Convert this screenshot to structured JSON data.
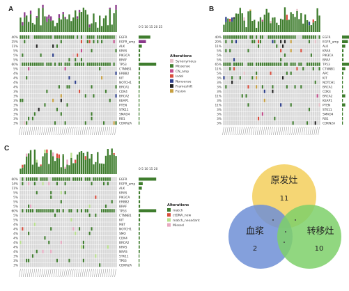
{
  "colors": {
    "background_cell": "#d8d8d8",
    "missense": "#3f7d2e",
    "tmb_bar": "#3f7d2e",
    "tmb_bar_alt": "#8b3a8b",
    "venn_top": "#f3cf5c",
    "venn_left": "#6f8fd6",
    "venn_right": "#7ed06a"
  },
  "panels": [
    {
      "id": "A",
      "letter": "A",
      "scale_label": "0 5 10 15 20 25",
      "rows": 20,
      "cols": 48,
      "genes": [
        "EGFR",
        "EGFR_amp",
        "ALK",
        "KRAS",
        "PIK3CA",
        "BRAF",
        "TP53",
        "CTNNB1",
        "ERBB2",
        "KIT",
        "NOTCH1",
        "BRCA1",
        "CDK4",
        "BRCA2",
        "KEAP1",
        "PTEN",
        "STK11",
        "SMAD4",
        "RB1",
        "CDKN2A"
      ],
      "pcts": [
        "40%",
        "25%",
        "11%",
        "5%",
        "5%",
        "5%",
        "60%",
        "5%",
        "4%",
        "4%",
        "4%",
        "4%",
        "3%",
        "3%",
        "3%",
        "3%",
        "3%",
        "3%",
        "3%",
        "3%"
      ],
      "legend": {
        "title": "Alterations",
        "items": [
          {
            "label": "Synonymous",
            "color": "#e8c0c8"
          },
          {
            "label": "Missense",
            "color": "#3f7d2e"
          },
          {
            "label": "CN_amp",
            "color": "#c44c8c"
          },
          {
            "label": "Indel",
            "color": "#d94c3c"
          },
          {
            "label": "Nonsense",
            "color": "#2c3e8c"
          },
          {
            "label": "Frameshift",
            "color": "#222222"
          },
          {
            "label": "Fusion",
            "color": "#c8a040"
          }
        ]
      }
    },
    {
      "id": "B",
      "letter": "B",
      "scale_label": "",
      "rows": 20,
      "cols": 48,
      "genes": [
        "EGFR",
        "EGFR_amp",
        "ALK",
        "KRAS",
        "PIK3CA",
        "BRAF",
        "TP53",
        "CTNNB1",
        "APC",
        "KIT",
        "NOTCH1",
        "BRCA1",
        "CDK4",
        "BRCA2",
        "KEAP1",
        "PTEN",
        "STK11",
        "SMAD4",
        "RB1",
        "CDKN2A"
      ],
      "pcts": [
        "40%",
        "20%",
        "11%",
        "5%",
        "5%",
        "5%",
        "65%",
        "11%",
        "5%",
        "3%",
        "3%",
        "3%",
        "3%",
        "11%",
        "3%",
        "11%",
        "3%",
        "3%",
        "3%",
        "3%"
      ],
      "legend": null
    },
    {
      "id": "C",
      "letter": "C",
      "scale_label": "0 5 10 15 20",
      "rows": 20,
      "cols": 48,
      "genes": [
        "EGFR",
        "EGFR_amp",
        "ALK",
        "KRAS",
        "PIK3CA",
        "ERBB2",
        "BRAF",
        "TP53",
        "CTNNB1",
        "KIT",
        "MET",
        "NOTCH1",
        "SMO",
        "CDK4",
        "BRCA2",
        "KRAS",
        "NRAS",
        "STK11",
        "TP63",
        "CDKN2A"
      ],
      "pcts": [
        "60%",
        "14%",
        "11%",
        "5%",
        "5%",
        "5%",
        "5%",
        "60%",
        "5%",
        "5%",
        "4%",
        "4%",
        "4%",
        "4%",
        "4%",
        "4%",
        "4%",
        "3%",
        "3%",
        "3%"
      ],
      "legend": {
        "title": "Alterations",
        "items": [
          {
            "label": "match",
            "color": "#3f7d2e"
          },
          {
            "label": "ctDNA_new",
            "color": "#d94c3c"
          },
          {
            "label": "match_neoadant",
            "color": "#b8e08c"
          },
          {
            "label": "Missed",
            "color": "#e8a8c0"
          }
        ]
      }
    }
  ],
  "venn": {
    "top_label": "原发灶",
    "top_count": "11",
    "left_label": "血浆",
    "left_count": "2",
    "right_label": "转移灶",
    "right_count": "10"
  }
}
